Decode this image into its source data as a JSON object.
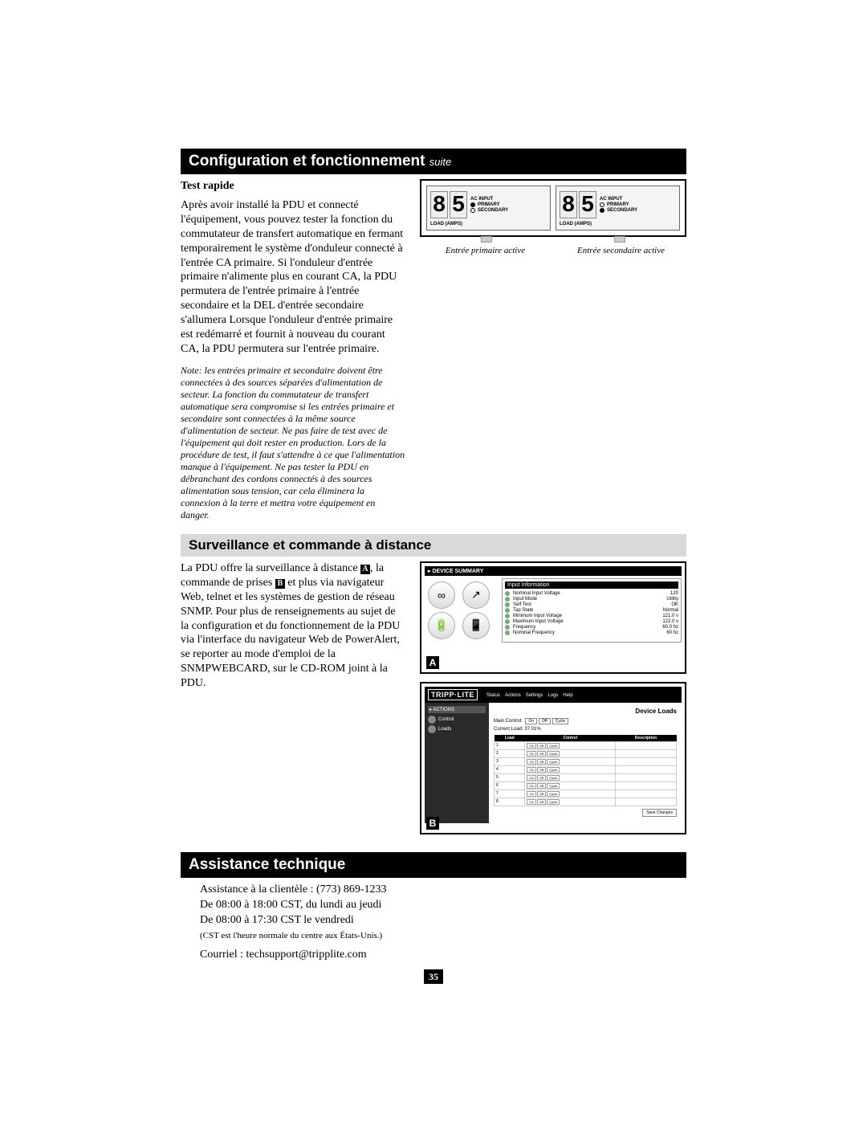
{
  "section1": {
    "title": "Configuration et fonctionnement",
    "suite": "suite",
    "test_heading": "Test rapide",
    "test_body": "Après avoir installé la PDU et connecté l'équipement, vous pouvez tester la fonction du commutateur de transfert automatique en fermant temporairement le système d'onduleur connecté à l'entrée CA primaire. Si l'onduleur d'entrée primaire n'alimente plus en courant CA, la PDU permutera de l'entrée primaire à l'entrée secondaire et la DEL d'entrée secondaire s'allumera Lorsque l'onduleur d'entrée primaire est redémarré et fournit à nouveau du courant CA, la PDU permutera sur l'entrée primaire.",
    "note": "Note: les entrées primaire et secondaire doivent être connectées à des sources séparées d'alimentation de secteur. La fonction du commutateur de transfert automatique sera compromise si les entrées primaire et secondaire sont connectées à la même source d'alimentation de secteur. Ne pas faire de test avec de l'équipement qui doit rester en production. Lors de la procédure de test, il faut s'attendre à ce que l'alimentation manque à l'équipement. Ne pas tester la PDU en débranchant des cordons connectés à des sources alimentation sous tension, car cela éliminera la connexion à la terre et mettra votre équipement en danger.",
    "led": {
      "digits_left": "85",
      "digits_right": "85",
      "ac_input": "AC INPUT",
      "primary": "PRIMARY",
      "secondary": "SECONDARY",
      "load": "LOAD (AMPS)",
      "caption_left": "Entrée primaire active",
      "caption_right": "Entrée secondaire active"
    }
  },
  "section2": {
    "title": "Surveillance et commande à distance",
    "body_pre_a": "La PDU offre la surveillance à distance ",
    "body_mid": ", la commande de prises ",
    "body_post_b": " et plus via navigateur Web, telnet et les systèmes de gestion de réseau SNMP. Pour plus de renseignements au sujet de la configuration et du fonctionnement de la PDU via l'interface du navigateur Web de PowerAlert, se reporter au mode d'emploi de la SNMPWEBCARD, sur le CD-ROM joint à la PDU.",
    "marker_a": "A",
    "marker_b": "B",
    "webA": {
      "header": "▸ DEVICE SUMMARY",
      "info_h": "Input Information",
      "icons": [
        "∞",
        "↗",
        "🔋",
        "📱"
      ],
      "icon_labels": [
        "Input",
        "Output",
        "Battery",
        "Miscellaneous"
      ],
      "rows": [
        {
          "k": "Nominal Input Voltage",
          "v": "120"
        },
        {
          "k": "Input Mode",
          "v": "Utility"
        },
        {
          "k": "Self Test",
          "v": "OK"
        },
        {
          "k": "Tap State",
          "v": "Normal"
        },
        {
          "k": "Minimum Input Voltage",
          "v": "121.0 v"
        },
        {
          "k": "Maximum Input Voltage",
          "v": "122.0 v"
        },
        {
          "k": "Frequency",
          "v": "60.0 hz"
        },
        {
          "k": "Nominal Frequency",
          "v": "60 hz"
        }
      ]
    },
    "webB": {
      "logo": "TRIPP·LITE",
      "nav": [
        "Status",
        "Actions",
        "Settings",
        "Logs",
        "Help"
      ],
      "side_head": "▸ ACTIONS",
      "side_items": [
        "Control",
        "Loads"
      ],
      "title": "Device Loads",
      "main_control_label": "Main Control:",
      "main_control_btns": [
        "On",
        "Off",
        "Cycle"
      ],
      "current_load_label": "Current Load:",
      "current_load_value": "37.01%",
      "cols": [
        "Load",
        "Control",
        "Description"
      ],
      "rows": [
        1,
        2,
        3,
        4,
        5,
        6,
        7,
        8
      ],
      "row_btns": [
        "On",
        "Off",
        "Cycle"
      ],
      "save": "Save Changes"
    }
  },
  "section3": {
    "title": "Assistance technique",
    "line1": "Assistance à la clientèle : (773) 869-1233",
    "line2": "De 08:00 à 18:00 CST, du lundi au jeudi",
    "line3": "De 08:00 à 17:30 CST le vendredi",
    "fine": "(CST est l'heure normale du centre aux États-Unis.)",
    "email": "Courriel : techsupport@tripplite.com"
  },
  "page_number": "35",
  "colors": {
    "black": "#000000",
    "gray_banner": "#d9d9d9"
  }
}
